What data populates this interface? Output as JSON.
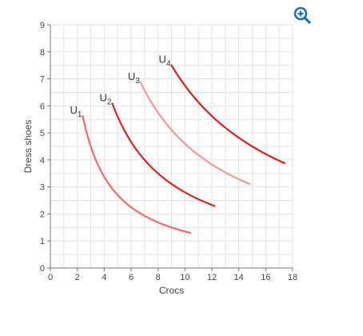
{
  "chart_data": {
    "type": "line",
    "xlabel": "Crocs",
    "ylabel": "Dress shoes",
    "xlim": [
      0,
      18
    ],
    "ylim": [
      0,
      9
    ],
    "x_ticks": [
      0,
      2,
      4,
      6,
      8,
      10,
      12,
      14,
      16,
      18
    ],
    "y_ticks": [
      0,
      1,
      2,
      3,
      4,
      5,
      6,
      7,
      8,
      9
    ],
    "grid": true,
    "legend": "none",
    "series": [
      {
        "name": "U1",
        "color": "#f06a6a",
        "k": 13.5,
        "x": [
          2.4,
          10.4
        ]
      },
      {
        "name": "U2",
        "color": "#d72626",
        "k": 28.0,
        "x": [
          4.6,
          12.2
        ]
      },
      {
        "name": "U3",
        "color": "#f29898",
        "k": 46.0,
        "x": [
          6.7,
          14.8
        ]
      },
      {
        "name": "U4",
        "color": "#d91f1f",
        "k": 67.5,
        "x": [
          9.0,
          17.4
        ]
      }
    ]
  },
  "toolbar": {
    "zoom_icon": "zoom-in-icon",
    "zoom_color": "#1f6fb5"
  }
}
